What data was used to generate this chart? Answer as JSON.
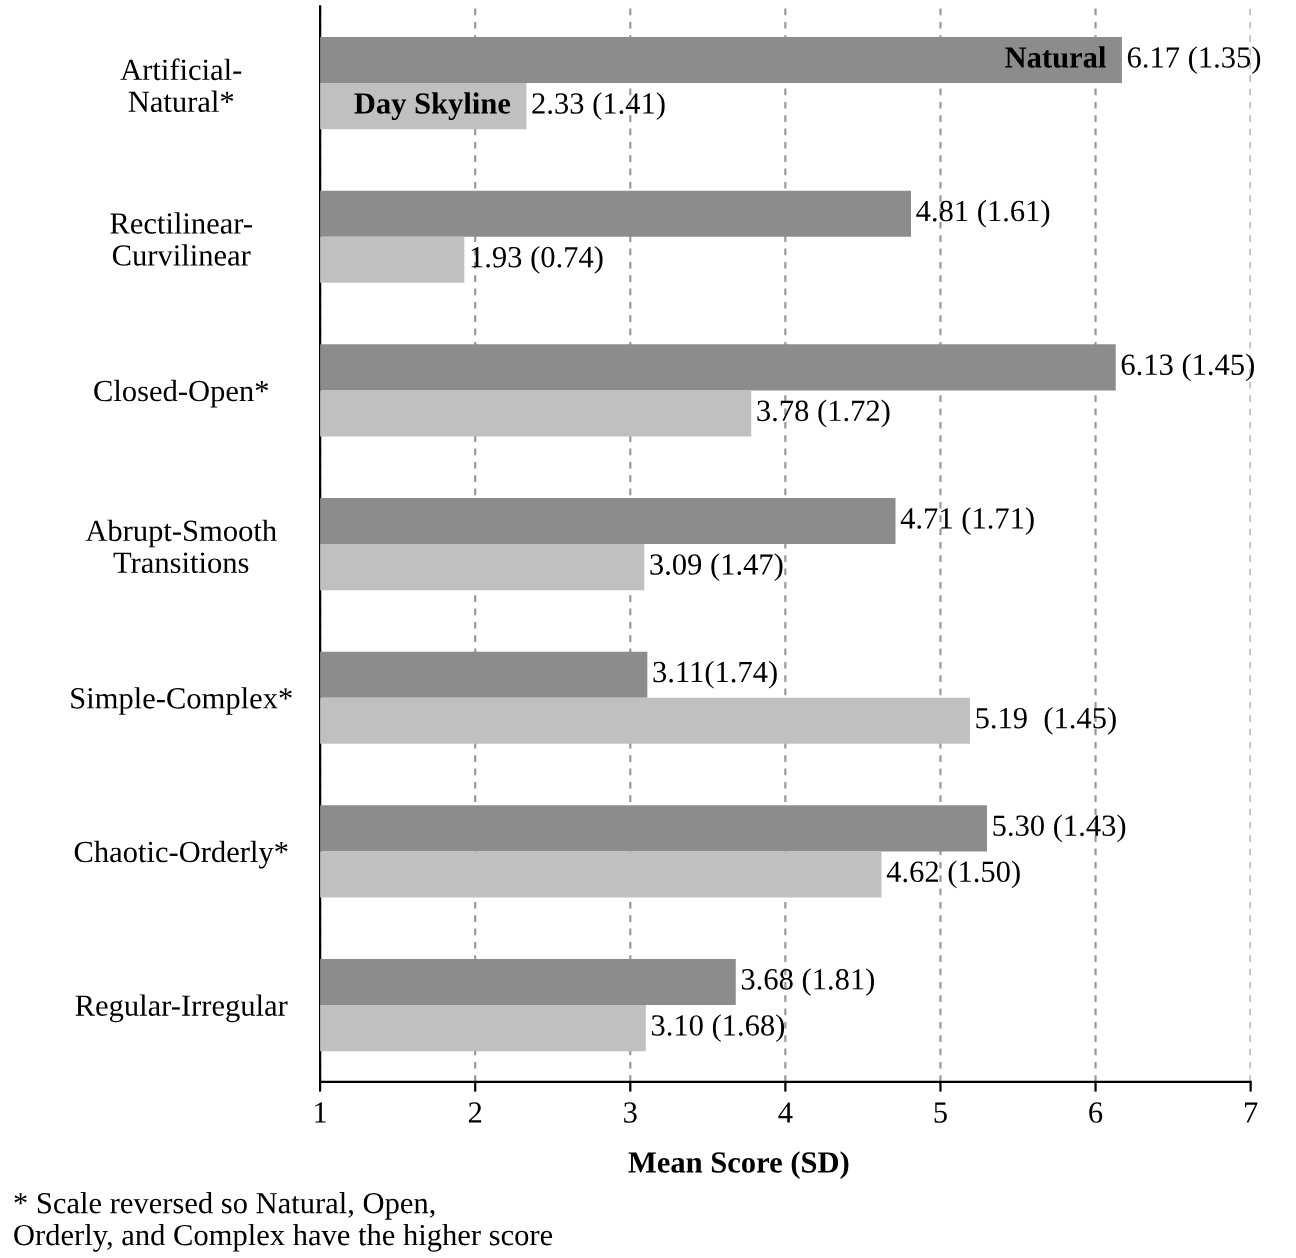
{
  "chart_data": {
    "type": "bar",
    "orientation": "horizontal",
    "categories": [
      "Artificial-\nNatural*",
      "Rectilinear-\nCurvilinear",
      "Closed-Open*",
      "Abrupt-Smooth\nTransitions",
      "Simple-Complex*",
      "Chaotic-Orderly*",
      "Regular-Irregular"
    ],
    "series": [
      {
        "name": "Natural",
        "color": "#8c8c8c",
        "values": [
          6.17,
          4.81,
          6.13,
          4.71,
          3.11,
          5.3,
          3.68
        ],
        "value_labels": [
          "6.17 (1.35)",
          "4.81 (1.61)",
          "6.13 (1.45)",
          "4.71 (1.71)",
          "3.11(1.74)",
          "5.30 (1.43)",
          "3.68 (1.81)"
        ]
      },
      {
        "name": "Day Skyline",
        "color": "#c0c0c0",
        "values": [
          2.33,
          1.93,
          3.78,
          3.09,
          5.19,
          4.62,
          3.1
        ],
        "value_labels": [
          "2.33 (1.41)",
          "1.93 (0.74)",
          "3.78 (1.72)",
          "3.09 (1.47)",
          "5.19  (1.45)",
          "4.62 (1.50)",
          "3.10 (1.68)"
        ]
      }
    ],
    "xlim": [
      1,
      7
    ],
    "xticks": [
      1,
      2,
      3,
      4,
      5,
      6,
      7
    ],
    "grid": "x",
    "legend": false,
    "xlabel": "Mean Score (SD)",
    "annotations": [
      "* Scale reversed so Natural, Open,\nOrderly, and Complex have the higher score"
    ]
  }
}
